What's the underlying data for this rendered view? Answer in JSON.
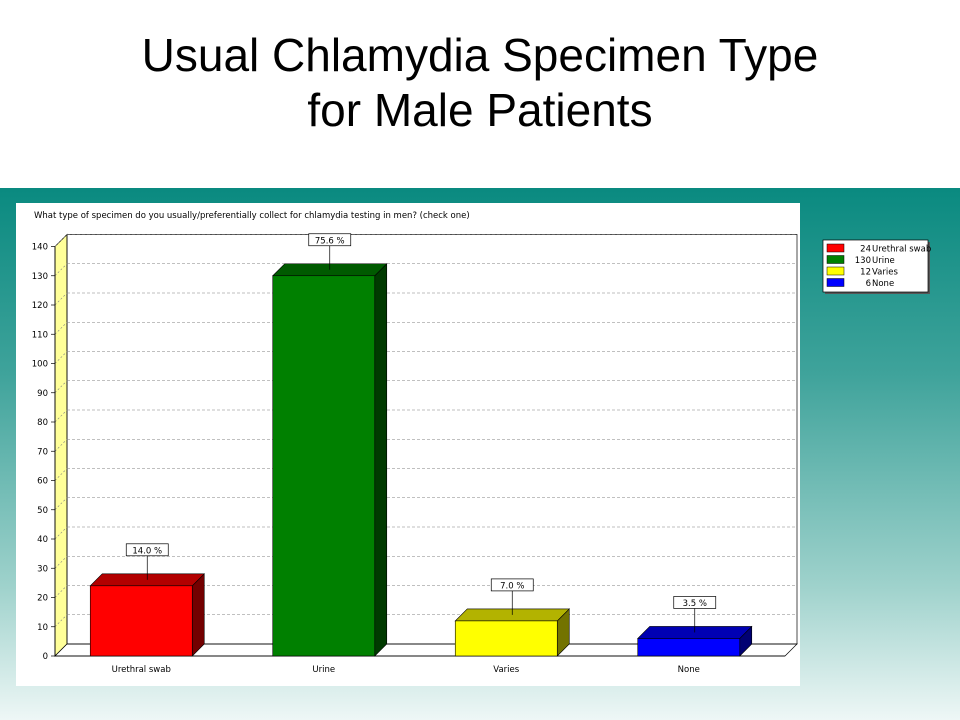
{
  "slide": {
    "title_line1": "Usual Chlamydia Specimen Type",
    "title_line2": "for Male Patients"
  },
  "chart_data": {
    "type": "bar",
    "title": "What type of specimen do you usually/preferentially collect for chlamydia testing in men? (check one)",
    "categories": [
      "Urethral swab",
      "Urine",
      "Varies",
      "None"
    ],
    "values": [
      24,
      130,
      12,
      6
    ],
    "percent_labels": [
      "14.0 %",
      "75.6 %",
      "7.0 %",
      "3.5 %"
    ],
    "colors": [
      "#ff0000",
      "#008000",
      "#ffff00",
      "#0000ff"
    ],
    "legend": [
      {
        "count": "24",
        "label": "Urethral swab"
      },
      {
        "count": "130",
        "label": "Urine"
      },
      {
        "count": "12",
        "label": "Varies"
      },
      {
        "count": "6",
        "label": "None"
      }
    ],
    "legend_position": "top-right",
    "ylim": [
      0,
      140
    ],
    "yticks": [
      0,
      10,
      20,
      30,
      40,
      50,
      60,
      70,
      80,
      90,
      100,
      110,
      120,
      130,
      140
    ],
    "grid": true,
    "style": "3d-bar",
    "xlabel": "",
    "ylabel": ""
  }
}
